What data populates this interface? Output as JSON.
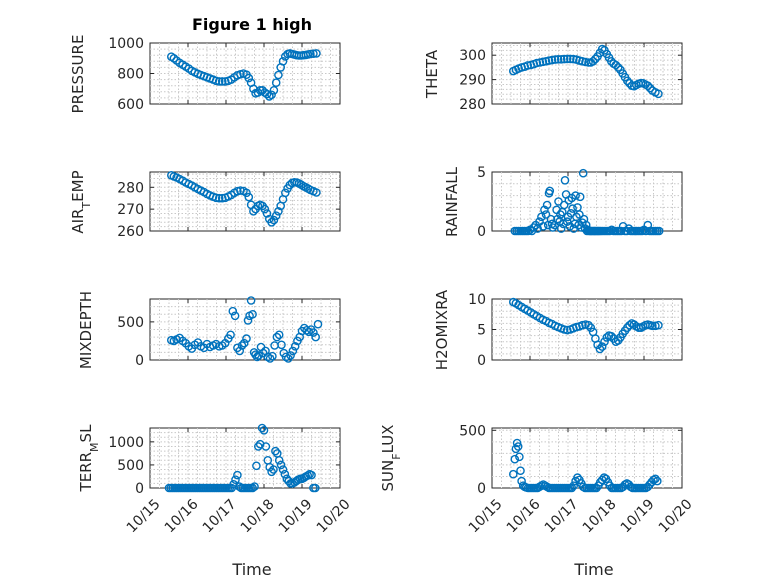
{
  "figure": {
    "title": "Figure 1 high",
    "x_tick_labels": [
      "10/15",
      "10/16",
      "10/17",
      "10/18",
      "10/19",
      "10/20"
    ],
    "xlabel": "Time"
  },
  "colors": {
    "marker": "#0072BD",
    "axes": "#262626",
    "grid": "#c8c8c8"
  },
  "chart_data": [
    {
      "type": "scatter",
      "name": "PRESSURE",
      "ylabel": "PRESSURE",
      "position": "top-left",
      "title": "Figure 1 high",
      "xlim": [
        15,
        20
      ],
      "ylim": [
        600,
        1000
      ],
      "yticks": [
        600,
        800,
        1000
      ],
      "grid": true,
      "x": [
        15.56,
        15.63,
        15.7,
        15.78,
        15.86,
        15.94,
        16.02,
        16.1,
        16.18,
        16.26,
        16.34,
        16.42,
        16.5,
        16.58,
        16.66,
        16.74,
        16.82,
        16.9,
        16.98,
        17.06,
        17.14,
        17.22,
        17.3,
        17.38,
        17.46,
        17.54,
        17.6,
        17.66,
        17.72,
        17.78,
        17.84,
        17.9,
        17.96,
        18.02,
        18.08,
        18.14,
        18.2,
        18.26,
        18.32,
        18.38,
        18.44,
        18.5,
        18.56,
        18.62,
        18.68,
        18.74,
        18.8,
        18.86,
        18.92,
        18.98,
        19.04,
        19.1,
        19.16,
        19.22,
        19.3,
        19.38
      ],
      "y": [
        910,
        900,
        885,
        870,
        858,
        845,
        832,
        818,
        808,
        798,
        790,
        782,
        775,
        768,
        760,
        752,
        748,
        748,
        748,
        752,
        760,
        775,
        788,
        795,
        800,
        792,
        770,
        740,
        700,
        670,
        675,
        690,
        690,
        675,
        665,
        650,
        660,
        690,
        740,
        790,
        840,
        880,
        912,
        928,
        932,
        928,
        924,
        920,
        918,
        918,
        920,
        922,
        925,
        928,
        930,
        932
      ]
    },
    {
      "type": "scatter",
      "name": "THETA",
      "ylabel": "THETA",
      "position": "top-right",
      "xlim": [
        15,
        20
      ],
      "ylim": [
        280,
        305
      ],
      "yticks": [
        280,
        290,
        300
      ],
      "grid": true,
      "x": [
        15.56,
        15.63,
        15.7,
        15.78,
        15.86,
        15.94,
        16.02,
        16.1,
        16.18,
        16.26,
        16.34,
        16.42,
        16.5,
        16.58,
        16.66,
        16.74,
        16.82,
        16.9,
        16.98,
        17.06,
        17.14,
        17.22,
        17.3,
        17.38,
        17.46,
        17.54,
        17.6,
        17.66,
        17.72,
        17.78,
        17.84,
        17.9,
        17.96,
        18.02,
        18.08,
        18.14,
        18.2,
        18.26,
        18.32,
        18.38,
        18.44,
        18.5,
        18.56,
        18.62,
        18.68,
        18.74,
        18.8,
        18.86,
        18.92,
        18.98,
        19.04,
        19.1,
        19.16,
        19.22,
        19.3,
        19.38
      ],
      "y": [
        293.5,
        294,
        294.5,
        295,
        295.3,
        295.8,
        296,
        296.3,
        296.8,
        297,
        297.3,
        297.5,
        297.8,
        298,
        298.2,
        298.3,
        298.3,
        298.4,
        298.5,
        298.5,
        298.4,
        298.2,
        297.8,
        297.5,
        297.2,
        297,
        297,
        297.5,
        298.5,
        299.5,
        301,
        302.5,
        302,
        300.5,
        299,
        297.5,
        296.5,
        296,
        295,
        294,
        292.5,
        291,
        289.5,
        288.5,
        287.5,
        287.3,
        287.8,
        288.3,
        288.6,
        288.5,
        288,
        287.5,
        286.5,
        285.5,
        284.8,
        284.2
      ]
    },
    {
      "type": "scatter",
      "name": "AIR_TEMP",
      "ylabel": "AIR_TEMP",
      "position": "mid-left",
      "xlim": [
        15,
        20
      ],
      "ylim": [
        260,
        287
      ],
      "yticks": [
        260,
        270,
        280
      ],
      "grid": true,
      "x": [
        15.56,
        15.63,
        15.7,
        15.78,
        15.86,
        15.94,
        16.02,
        16.1,
        16.18,
        16.26,
        16.34,
        16.42,
        16.5,
        16.58,
        16.66,
        16.74,
        16.82,
        16.9,
        16.98,
        17.06,
        17.14,
        17.22,
        17.3,
        17.38,
        17.46,
        17.54,
        17.6,
        17.66,
        17.72,
        17.78,
        17.84,
        17.9,
        17.96,
        18.02,
        18.08,
        18.14,
        18.2,
        18.26,
        18.32,
        18.38,
        18.44,
        18.5,
        18.56,
        18.62,
        18.68,
        18.74,
        18.8,
        18.86,
        18.92,
        18.98,
        19.04,
        19.1,
        19.16,
        19.22,
        19.3,
        19.38
      ],
      "y": [
        285.5,
        285,
        284.5,
        283.8,
        283,
        282.2,
        281.5,
        280.8,
        280,
        279.2,
        278.5,
        277.8,
        277,
        276.3,
        275.7,
        275.2,
        275,
        275,
        275.2,
        275.8,
        276.5,
        277.5,
        278.2,
        278.5,
        278.3,
        277.5,
        275.5,
        272,
        269,
        270,
        271.5,
        272,
        271.5,
        270,
        268,
        265.5,
        264,
        265,
        267,
        269,
        271.5,
        274.5,
        277.5,
        279.5,
        281,
        282,
        282.3,
        282.2,
        281.8,
        281.2,
        280.5,
        280,
        279.4,
        278.8,
        278.2,
        277.6
      ]
    },
    {
      "type": "scatter",
      "name": "RAINFALL",
      "ylabel": "RAINFALL",
      "position": "mid-right",
      "xlim": [
        15,
        20
      ],
      "ylim": [
        0,
        5
      ],
      "yticks": [
        0,
        5
      ],
      "grid": true,
      "x": [
        15.6,
        15.65,
        15.7,
        15.75,
        15.8,
        15.85,
        15.9,
        15.95,
        16.0,
        16.05,
        16.1,
        16.15,
        16.2,
        16.25,
        16.3,
        16.35,
        16.38,
        16.42,
        16.45,
        16.48,
        16.5,
        16.52,
        16.55,
        16.58,
        16.6,
        16.65,
        16.7,
        16.72,
        16.75,
        16.78,
        16.8,
        16.82,
        16.85,
        16.88,
        16.9,
        16.92,
        16.95,
        16.98,
        17.0,
        17.02,
        17.05,
        17.08,
        17.1,
        17.12,
        17.15,
        17.18,
        17.2,
        17.22,
        17.25,
        17.28,
        17.3,
        17.32,
        17.35,
        17.38,
        17.4,
        17.42,
        17.45,
        17.48,
        17.5,
        17.52,
        17.55,
        17.58,
        17.6,
        17.62,
        17.65,
        17.68,
        17.7,
        17.72,
        17.75,
        17.78,
        17.8,
        17.83,
        17.86,
        17.9,
        17.95,
        18.0,
        18.05,
        18.1,
        18.15,
        18.2,
        18.25,
        18.3,
        18.35,
        18.4,
        18.45,
        18.5,
        18.55,
        18.6,
        18.65,
        18.7,
        18.75,
        18.8,
        18.85,
        18.9,
        18.95,
        19.0,
        19.05,
        19.1,
        19.15,
        19.2,
        19.25,
        19.3,
        19.35,
        19.4
      ],
      "y": [
        0,
        0,
        0,
        0,
        0,
        0,
        0,
        0,
        0.1,
        0,
        0.3,
        0.5,
        0.2,
        0.8,
        1.2,
        0.4,
        1.8,
        1.4,
        2.2,
        0.5,
        3.2,
        3.4,
        1.0,
        0.6,
        0.3,
        0.5,
        1.8,
        1.0,
        2.5,
        0.8,
        1.4,
        0.2,
        1.6,
        0.6,
        2.2,
        4.3,
        3.1,
        0.8,
        1.2,
        2.6,
        0.4,
        1.5,
        2.8,
        1.9,
        0.2,
        0.6,
        3.0,
        1.2,
        2.0,
        0.5,
        1.4,
        2.9,
        0.3,
        0.7,
        4.9,
        1.0,
        0.2,
        0.5,
        0,
        0.1,
        0,
        0,
        0,
        0,
        0,
        0,
        0,
        0,
        0,
        0,
        0,
        0,
        0,
        0,
        0,
        0,
        0,
        0,
        0.1,
        0,
        0,
        0,
        0,
        0,
        0.4,
        0,
        0,
        0.2,
        0,
        0,
        0,
        0,
        0,
        0,
        0,
        0.1,
        0,
        0.5,
        0,
        0,
        0,
        0,
        0,
        0
      ]
    },
    {
      "type": "scatter",
      "name": "MIXDEPTH",
      "ylabel": "MIXDEPTH",
      "position": "lower-left",
      "xlim": [
        15,
        20
      ],
      "ylim": [
        0,
        800
      ],
      "yticks": [
        0,
        500
      ],
      "grid": true,
      "x": [
        15.56,
        15.63,
        15.7,
        15.78,
        15.86,
        15.94,
        16.02,
        16.1,
        16.18,
        16.26,
        16.34,
        16.42,
        16.5,
        16.58,
        16.66,
        16.74,
        16.82,
        16.9,
        16.98,
        17.06,
        17.12,
        17.18,
        17.24,
        17.3,
        17.36,
        17.42,
        17.48,
        17.54,
        17.58,
        17.62,
        17.66,
        17.7,
        17.74,
        17.78,
        17.82,
        17.86,
        17.92,
        17.98,
        18.04,
        18.1,
        18.16,
        18.22,
        18.28,
        18.34,
        18.4,
        18.46,
        18.52,
        18.58,
        18.64,
        18.7,
        18.76,
        18.82,
        18.88,
        18.94,
        19.0,
        19.06,
        19.12,
        19.18,
        19.24,
        19.3,
        19.36,
        19.42
      ],
      "y": [
        260,
        250,
        270,
        290,
        250,
        220,
        180,
        150,
        200,
        230,
        180,
        160,
        210,
        170,
        190,
        210,
        180,
        190,
        220,
        280,
        330,
        640,
        580,
        160,
        120,
        190,
        220,
        280,
        520,
        580,
        780,
        600,
        100,
        70,
        40,
        60,
        170,
        90,
        120,
        40,
        20,
        50,
        190,
        300,
        330,
        200,
        90,
        40,
        20,
        60,
        120,
        180,
        250,
        300,
        380,
        420,
        390,
        370,
        400,
        360,
        300,
        470
      ]
    },
    {
      "type": "scatter",
      "name": "H2OMIXRA",
      "ylabel": "H2OMIXRA",
      "position": "lower-right",
      "xlim": [
        15,
        20
      ],
      "ylim": [
        0,
        10
      ],
      "yticks": [
        0,
        5,
        10
      ],
      "grid": true,
      "x": [
        15.56,
        15.63,
        15.7,
        15.78,
        15.86,
        15.94,
        16.02,
        16.1,
        16.18,
        16.26,
        16.34,
        16.42,
        16.5,
        16.58,
        16.66,
        16.74,
        16.82,
        16.9,
        16.98,
        17.06,
        17.14,
        17.22,
        17.3,
        17.38,
        17.46,
        17.54,
        17.6,
        17.66,
        17.72,
        17.78,
        17.84,
        17.9,
        17.96,
        18.02,
        18.08,
        18.14,
        18.2,
        18.26,
        18.32,
        18.38,
        18.44,
        18.5,
        18.56,
        18.62,
        18.68,
        18.74,
        18.8,
        18.86,
        18.92,
        18.98,
        19.04,
        19.1,
        19.16,
        19.22,
        19.3,
        19.38
      ],
      "y": [
        9.5,
        9.3,
        9.0,
        8.7,
        8.4,
        8.1,
        7.8,
        7.5,
        7.2,
        6.9,
        6.6,
        6.4,
        6.1,
        5.9,
        5.6,
        5.4,
        5.2,
        5.0,
        4.9,
        5.0,
        5.2,
        5.4,
        5.5,
        5.7,
        5.8,
        5.7,
        5.3,
        4.6,
        3.5,
        2.5,
        1.8,
        2.2,
        3.0,
        3.7,
        4.0,
        3.9,
        3.5,
        3.0,
        3.2,
        3.7,
        4.3,
        4.8,
        5.3,
        5.7,
        6.0,
        5.8,
        5.5,
        5.3,
        5.3,
        5.5,
        5.7,
        5.8,
        5.7,
        5.6,
        5.6,
        5.7
      ]
    },
    {
      "type": "scatter",
      "name": "TERR_MSL",
      "ylabel": "TERR_MSL",
      "position": "bottom-left",
      "xlim": [
        15,
        20
      ],
      "ylim": [
        0,
        1300
      ],
      "yticks": [
        0,
        500,
        1000
      ],
      "grid": true,
      "x": [
        15.5,
        15.55,
        15.6,
        15.65,
        15.7,
        15.75,
        15.8,
        15.85,
        15.9,
        15.95,
        16.0,
        16.05,
        16.1,
        16.15,
        16.2,
        16.25,
        16.3,
        16.35,
        16.4,
        16.45,
        16.5,
        16.55,
        16.6,
        16.65,
        16.7,
        16.75,
        16.8,
        16.85,
        16.9,
        16.95,
        17.0,
        17.05,
        17.1,
        17.15,
        17.2,
        17.25,
        17.3,
        17.35,
        17.4,
        17.45,
        17.5,
        17.55,
        17.6,
        17.65,
        17.7,
        17.75,
        17.8,
        17.85,
        17.9,
        17.95,
        18.0,
        18.05,
        18.1,
        18.15,
        18.2,
        18.25,
        18.3,
        18.35,
        18.4,
        18.45,
        18.5,
        18.55,
        18.6,
        18.65,
        18.7,
        18.75,
        18.8,
        18.85,
        18.9,
        18.95,
        19.0,
        19.05,
        19.1,
        19.15,
        19.2,
        19.25,
        19.3,
        19.35
      ],
      "y": [
        0,
        0,
        0,
        0,
        0,
        0,
        0,
        0,
        0,
        0,
        0,
        0,
        0,
        0,
        0,
        0,
        0,
        0,
        0,
        0,
        0,
        0,
        0,
        0,
        0,
        0,
        0,
        0,
        0,
        0,
        0,
        0,
        0,
        0,
        80,
        180,
        280,
        30,
        0,
        0,
        0,
        0,
        0,
        0,
        0,
        30,
        480,
        900,
        950,
        1300,
        1250,
        900,
        600,
        450,
        350,
        400,
        800,
        750,
        600,
        500,
        400,
        300,
        200,
        150,
        100,
        100,
        120,
        150,
        180,
        200,
        200,
        220,
        250,
        270,
        300,
        280,
        0,
        0
      ]
    },
    {
      "type": "scatter",
      "name": "SUN_FLUX",
      "ylabel": "SUN_FLUX",
      "position": "bottom-right",
      "xlim": [
        15,
        20
      ],
      "ylim": [
        0,
        520
      ],
      "yticks": [
        0,
        500
      ],
      "grid": true,
      "x": [
        15.56,
        15.6,
        15.63,
        15.66,
        15.69,
        15.72,
        15.75,
        15.78,
        15.82,
        15.86,
        15.9,
        15.95,
        16.0,
        16.05,
        16.1,
        16.15,
        16.2,
        16.25,
        16.3,
        16.35,
        16.4,
        16.45,
        16.5,
        16.55,
        16.6,
        16.65,
        16.7,
        16.75,
        16.8,
        16.85,
        16.9,
        16.95,
        17.0,
        17.05,
        17.1,
        17.15,
        17.2,
        17.25,
        17.3,
        17.35,
        17.4,
        17.45,
        17.5,
        17.55,
        17.6,
        17.65,
        17.7,
        17.75,
        17.8,
        17.85,
        17.9,
        17.95,
        18.0,
        18.05,
        18.1,
        18.15,
        18.2,
        18.25,
        18.3,
        18.35,
        18.4,
        18.45,
        18.5,
        18.55,
        18.6,
        18.65,
        18.7,
        18.75,
        18.8,
        18.85,
        18.9,
        18.95,
        19.0,
        19.05,
        19.1,
        19.15,
        19.2,
        19.25,
        19.3,
        19.35
      ],
      "y": [
        120,
        250,
        340,
        390,
        360,
        270,
        150,
        60,
        20,
        10,
        5,
        0,
        0,
        0,
        0,
        0,
        0,
        10,
        20,
        30,
        20,
        10,
        0,
        0,
        0,
        0,
        0,
        0,
        0,
        0,
        0,
        0,
        0,
        0,
        0,
        20,
        60,
        90,
        70,
        40,
        10,
        0,
        0,
        0,
        0,
        0,
        0,
        0,
        20,
        50,
        70,
        90,
        80,
        50,
        20,
        0,
        0,
        0,
        0,
        0,
        0,
        10,
        30,
        40,
        30,
        10,
        0,
        0,
        0,
        0,
        0,
        0,
        0,
        0,
        10,
        30,
        50,
        70,
        80,
        60
      ]
    }
  ]
}
